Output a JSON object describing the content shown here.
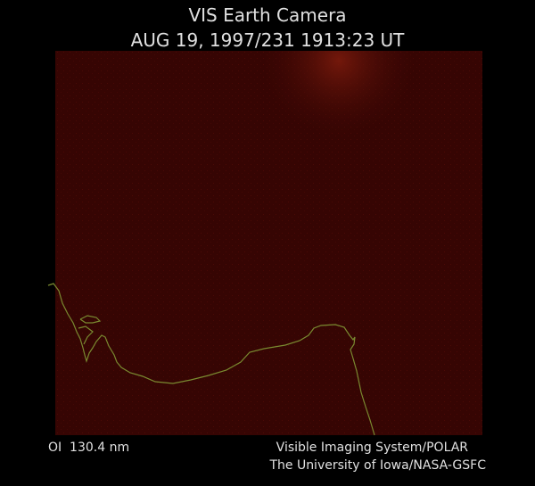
{
  "header": {
    "title": "VIS Earth Camera",
    "timestamp": "AUG 19, 1997/231 1913:23 UT"
  },
  "footer": {
    "filter": "OI  130.4 nm",
    "instrument": "Visible Imaging System/POLAR",
    "credit": "The University of Iowa/NASA-GSFC"
  }
}
